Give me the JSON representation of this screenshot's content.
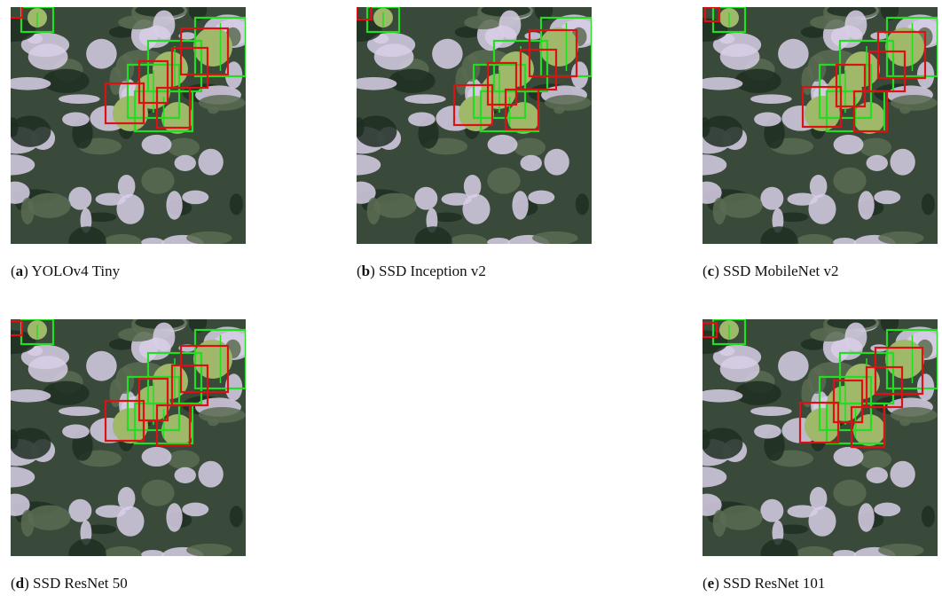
{
  "figure": {
    "panels": [
      {
        "caption": [
          "(",
          "a",
          ") YOLOv4 Tiny"
        ]
      },
      {
        "caption": [
          "(",
          "b",
          ") SSD Inception v2"
        ]
      },
      {
        "caption": [
          "(",
          "c",
          ") SSD MobileNet v2"
        ]
      },
      {
        "caption": [
          "(",
          "d",
          ") SSD ResNet 50"
        ]
      },
      {
        "caption": [
          "(",
          "e",
          ") SSD ResNet 101"
        ]
      }
    ]
  }
}
